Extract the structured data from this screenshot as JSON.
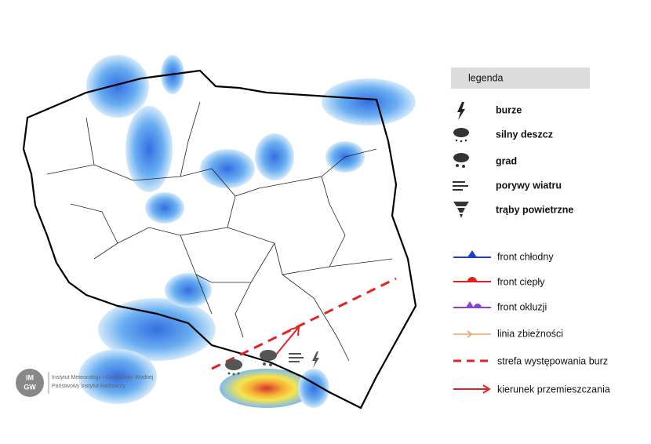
{
  "legend": {
    "title": "legenda",
    "phenomena": [
      "burze",
      "silny deszcz",
      "grad",
      "porywy wiatru",
      "trąby powietrzne"
    ],
    "lines": [
      "front chłodny",
      "front ciepły",
      "front okluzji",
      "linia zbieżności",
      "strefa występowania burz",
      "kierunek przemieszczania"
    ]
  },
  "logo": {
    "mark_top": "IM",
    "mark_bottom": "GW",
    "line1": "Instytut Meteorologii i Gospodarki Wodnej",
    "line2": "Państwowy Instytut Badawczy"
  }
}
